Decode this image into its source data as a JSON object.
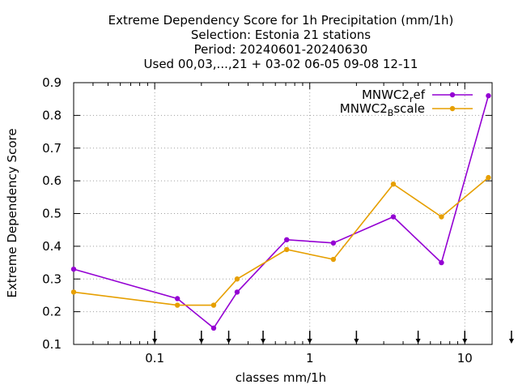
{
  "chart_data": {
    "type": "line",
    "title_lines": [
      "Extreme Dependency Score  for 1h Precipitation (mm/1h)",
      "Selection: Estonia     21 stations",
      "Period: 20240601-20240630",
      "Used 00,03,...,21 + 03-02 06-05 09-08 12-11"
    ],
    "xlabel": "classes mm/1h",
    "ylabel": "Extreme Dependency Score",
    "x_scale": "log",
    "xlim": [
      0.03,
      15
    ],
    "ylim": [
      0.1,
      0.9
    ],
    "x_ticks": [
      0.1,
      1,
      10
    ],
    "x_tick_labels": [
      "0.1",
      "1",
      "10"
    ],
    "y_ticks": [
      0.1,
      0.2,
      0.3,
      0.4,
      0.5,
      0.6,
      0.7,
      0.8,
      0.9
    ],
    "y_tick_labels": [
      "0.1",
      "0.2",
      "0.3",
      "0.4",
      "0.5",
      "0.6",
      "0.7",
      "0.8",
      "0.9"
    ],
    "grid": true,
    "legend_position": "top-right",
    "threshold_markers": [
      0.1,
      0.2,
      0.3,
      0.5,
      1,
      2,
      5,
      10,
      20
    ],
    "series": [
      {
        "name": "MNWC2_ref",
        "legend_main": "MNWC2",
        "legend_sub": "r",
        "legend_rest": "ef",
        "color": "#9400d3",
        "x": [
          0.03,
          0.14,
          0.24,
          0.34,
          0.71,
          1.42,
          3.46,
          7.07,
          14.2
        ],
        "y": [
          0.33,
          0.24,
          0.15,
          0.26,
          0.42,
          0.41,
          0.49,
          0.35,
          0.86
        ]
      },
      {
        "name": "MNWC2_Bscale",
        "legend_main": "MNWC2",
        "legend_sub": "B",
        "legend_rest": "scale",
        "color": "#e69f00",
        "x": [
          0.03,
          0.14,
          0.24,
          0.34,
          0.71,
          1.42,
          3.46,
          7.07,
          14.2
        ],
        "y": [
          0.26,
          0.22,
          0.22,
          0.3,
          0.39,
          0.36,
          0.59,
          0.49,
          0.61
        ]
      }
    ]
  }
}
